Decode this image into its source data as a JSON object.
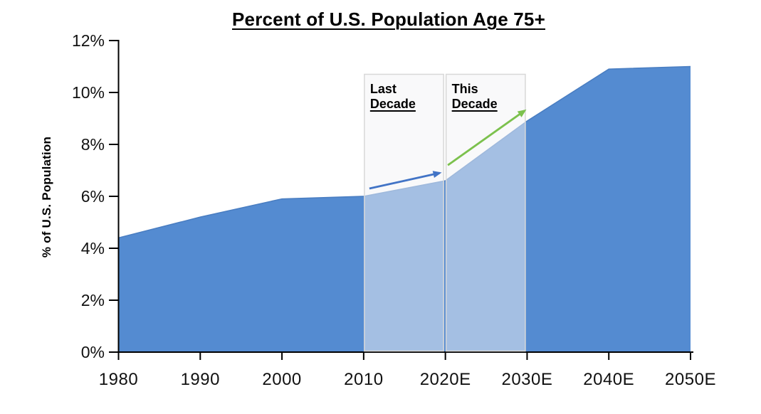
{
  "chart_data": {
    "type": "area",
    "title": "Percent of U.S. Population Age 75+",
    "ylabel": "% of U.S. Population",
    "xlabel": "",
    "categories": [
      "1980",
      "1990",
      "2000",
      "2010",
      "2020E",
      "2030E",
      "2040E",
      "2050E"
    ],
    "values": [
      4.4,
      5.2,
      5.9,
      6.0,
      6.6,
      8.9,
      10.9,
      11.0
    ],
    "ylim": [
      0,
      12
    ],
    "y_tick_step": 2,
    "y_tick_suffix": "%",
    "grid": false,
    "legend": "none",
    "area_color": "#548BD1",
    "area_edge_color": "#4A7EC2",
    "axis_color": "#000000",
    "annotations": {
      "highlight_top_pct": 10.7,
      "highlight_fill": "rgba(243,243,246,0.5)",
      "highlight_border": "#D8D8D8",
      "highlights": [
        {
          "from": "2010",
          "to": "2020E",
          "label_line1": "Last",
          "label_line2": "Decade",
          "arrow": {
            "color": "#4274C6",
            "i1": 3.07,
            "p1": 6.3,
            "i2": 3.93,
            "p2": 6.9
          }
        },
        {
          "from": "2020E",
          "to": "2030E",
          "label_line1": "This",
          "label_line2": "Decade",
          "arrow": {
            "color": "#7CC14D",
            "i1": 4.03,
            "p1": 7.2,
            "i2": 4.97,
            "p2": 9.3
          }
        }
      ]
    }
  }
}
